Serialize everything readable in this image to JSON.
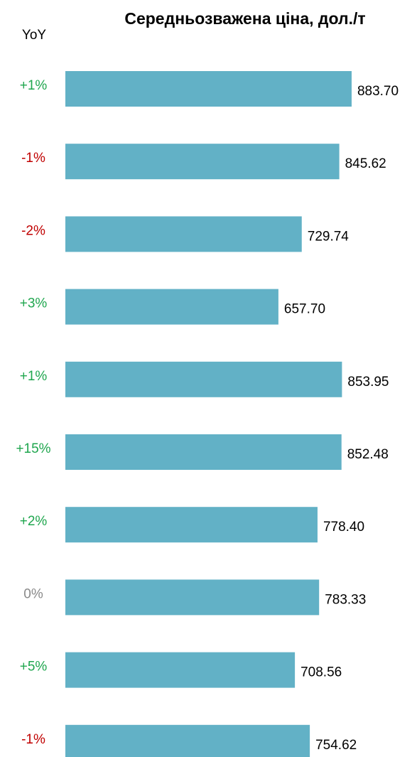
{
  "chart_data": {
    "type": "bar",
    "orientation": "horizontal",
    "title": "Середньозважена ціна, дол./т",
    "yoy_header": "YoY",
    "values": [
      883.7,
      845.62,
      729.74,
      657.7,
      853.95,
      852.48,
      778.4,
      783.33,
      708.56,
      754.62
    ],
    "value_labels": [
      "883.70",
      "845.62",
      "729.74",
      "657.70",
      "853.95",
      "852.48",
      "778.40",
      "783.33",
      "708.56",
      "754.62"
    ],
    "yoy": [
      "+1%",
      "-1%",
      "-2%",
      "+3%",
      "+1%",
      "+15%",
      "+2%",
      "0%",
      "+5%",
      "-1%"
    ],
    "color": "#62b1c6",
    "yoy_colors": {
      "positive": "#1fa64e",
      "negative": "#c00000",
      "zero": "#8a8a8a"
    }
  }
}
